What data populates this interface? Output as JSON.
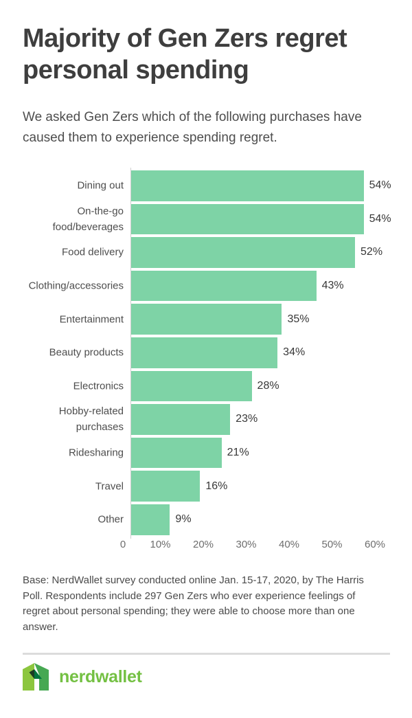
{
  "page": {
    "title": "Majority of Gen Zers regret personal spending",
    "subtitle": "We asked Gen Zers which of the following purchases have caused them to experience spending regret.",
    "footnote": "Base: NerdWallet survey conducted online Jan. 15-17, 2020, by The Harris Poll. Respondents include 297 Gen Zers who ever experience feelings of regret about personal spending; they were able to choose more than one answer.",
    "brand": {
      "wordmark": "nerdwallet",
      "logo_icon": "nerdwallet-n-mark"
    }
  },
  "chart_data": {
    "type": "bar",
    "orientation": "horizontal",
    "title": "",
    "xlabel": "",
    "ylabel": "",
    "categories": [
      "Dining out",
      "On-the-go food/beverages",
      "Food delivery",
      "Clothing/accessories",
      "Entertainment",
      "Beauty products",
      "Electronics",
      "Hobby-related purchases",
      "Ridesharing",
      "Travel",
      "Other"
    ],
    "values": [
      54,
      54,
      52,
      43,
      35,
      34,
      28,
      23,
      21,
      16,
      9
    ],
    "value_labels": [
      "54%",
      "54%",
      "52%",
      "43%",
      "35%",
      "34%",
      "28%",
      "23%",
      "21%",
      "16%",
      "9%"
    ],
    "x_ticks": [
      "0",
      "10%",
      "20%",
      "30%",
      "40%",
      "50%",
      "60%"
    ],
    "xlim": [
      0,
      60
    ],
    "grid": false,
    "legend": "none",
    "value_label_position": "outside-end",
    "bar_color": "#7ED3A6"
  },
  "colors": {
    "title_text": "#3e3e3e",
    "body_text": "#4d4d4d",
    "value_text": "#373737",
    "tick_text": "#6d6d6d",
    "axis_line": "#cfcfcf",
    "divider": "#dcdcdc",
    "bar": "#7ED3A6",
    "brand_green": "#74C043",
    "logo_light_green": "#8CC63E",
    "logo_mid_green": "#46A852",
    "logo_dark_green": "#00753F",
    "logo_darkest_green": "#1C3B24"
  }
}
